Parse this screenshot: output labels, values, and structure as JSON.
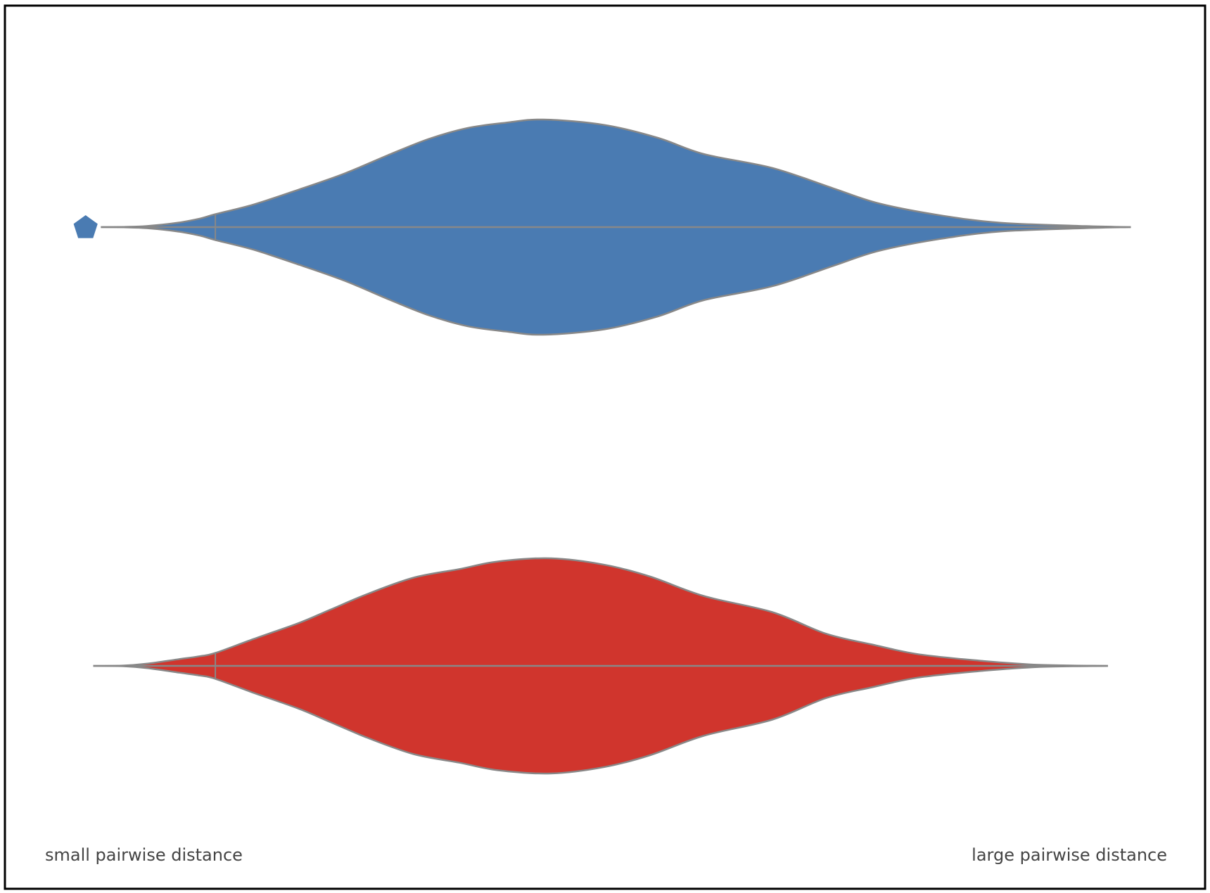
{
  "chart_data": {
    "type": "violin",
    "orientation": "horizontal",
    "x_range": [
      -1.0,
      13.2
    ],
    "grid": false,
    "legend": "none",
    "annotations": {
      "left": "small pairwise distance",
      "right": "large pairwise distance"
    },
    "series": [
      {
        "color": "#4a7bb2",
        "marker": {
          "shape": "pentagon",
          "x": -0.8
        },
        "quartile_line_x": 0.9,
        "density": {
          "x": [
            -0.6,
            -0.3,
            0.0,
            0.4,
            0.7,
            0.9,
            1.4,
            2.0,
            2.6,
            3.2,
            3.7,
            4.2,
            4.7,
            5.2,
            6.0,
            6.7,
            7.3,
            8.2,
            9.0,
            9.6,
            10.4,
            11.2,
            12.3,
            12.9
          ],
          "y": [
            0.0,
            0.002,
            0.01,
            0.04,
            0.08,
            0.12,
            0.21,
            0.35,
            0.5,
            0.68,
            0.82,
            0.92,
            0.97,
            1.0,
            0.95,
            0.83,
            0.68,
            0.55,
            0.36,
            0.22,
            0.11,
            0.04,
            0.01,
            0.0
          ]
        }
      },
      {
        "color": "#d0352d",
        "quartile_line_x": 0.9,
        "density": {
          "x": [
            -0.7,
            -0.3,
            0.0,
            0.4,
            0.7,
            0.9,
            1.4,
            2.0,
            2.4,
            2.9,
            3.5,
            4.1,
            4.6,
            5.3,
            6.0,
            6.6,
            7.3,
            8.2,
            8.9,
            9.5,
            10.1,
            10.9,
            11.7,
            12.6
          ],
          "y": [
            0.0,
            0.003,
            0.02,
            0.06,
            0.09,
            0.12,
            0.25,
            0.4,
            0.52,
            0.67,
            0.82,
            0.9,
            0.97,
            1.0,
            0.94,
            0.83,
            0.65,
            0.5,
            0.3,
            0.2,
            0.11,
            0.05,
            0.01,
            0.0
          ]
        }
      }
    ]
  }
}
